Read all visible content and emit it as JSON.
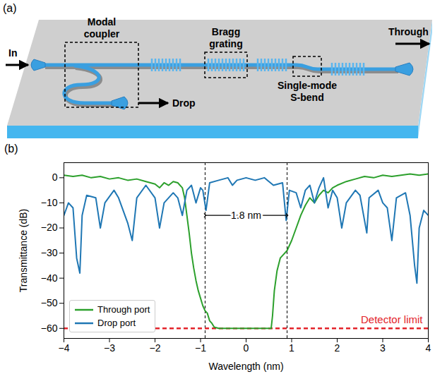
{
  "diagram": {
    "panel_label": "(a)",
    "labels": {
      "input": "In",
      "drop": "Drop",
      "through": "Through",
      "modal_coupler": "Modal coupler",
      "bragg_grating": "Bragg grating",
      "s_bend": "Single-mode S-bend"
    }
  },
  "chart_data": {
    "type": "line",
    "panel_label": "(b)",
    "x_label": "Wavelength (nm)",
    "y_label": "Transmittance (dB)",
    "xlim": [
      -4,
      4
    ],
    "ylim": [
      -64,
      6
    ],
    "xticks": [
      -4,
      -3,
      -2,
      -1,
      0,
      1,
      2,
      3,
      4
    ],
    "yticks": [
      -60,
      -50,
      -40,
      -30,
      -20,
      -10,
      0
    ],
    "grid": false,
    "legend": "lower left",
    "series": [
      {
        "name": "Through port",
        "color": "#2ca02c",
        "x": [
          -4,
          -3.8,
          -3.6,
          -3.4,
          -3.2,
          -3.0,
          -2.8,
          -2.6,
          -2.4,
          -2.2,
          -2.0,
          -1.9,
          -1.8,
          -1.7,
          -1.6,
          -1.5,
          -1.4,
          -1.35,
          -1.3,
          -1.25,
          -1.2,
          -1.15,
          -1.1,
          -1.05,
          -1.0,
          -0.95,
          -0.9,
          -0.85,
          -0.8,
          -0.75,
          -0.7,
          -0.6,
          0.55,
          0.58,
          0.62,
          0.68,
          0.75,
          0.8,
          0.9,
          1.0,
          1.1,
          1.2,
          1.3,
          1.4,
          1.5,
          1.6,
          1.7,
          1.8,
          1.9,
          2.0,
          2.2,
          2.4,
          2.6,
          2.8,
          3.0,
          3.2,
          3.4,
          3.6,
          3.8,
          4.0
        ],
        "values": [
          1,
          0.5,
          1,
          0,
          0.5,
          -0.5,
          0,
          -1,
          -0.5,
          -1.5,
          -2.5,
          -4,
          -2,
          -3,
          -1.5,
          -2,
          -4,
          -8,
          -15,
          -22,
          -30,
          -36,
          -41,
          -45,
          -48,
          -51,
          -53,
          -54,
          -57,
          -58,
          -59.5,
          -60,
          -60,
          -55,
          -45,
          -37,
          -32,
          -31,
          -29,
          -25,
          -20,
          -15,
          -11,
          -8,
          -10,
          -7,
          -5,
          -6,
          -4,
          -3,
          -1.5,
          -0.5,
          0.5,
          0,
          1,
          0.5,
          1,
          1.5,
          1,
          1.5
        ]
      },
      {
        "name": "Drop port",
        "color": "#1f77b4",
        "x": [
          -4,
          -3.9,
          -3.8,
          -3.72,
          -3.65,
          -3.6,
          -3.5,
          -3.3,
          -3.2,
          -3.1,
          -2.9,
          -2.8,
          -2.6,
          -2.5,
          -2.4,
          -2.2,
          -2.0,
          -1.9,
          -1.8,
          -1.6,
          -1.5,
          -1.4,
          -1.3,
          -1.2,
          -1.1,
          -1.0,
          -0.95,
          -0.88,
          -0.8,
          -0.6,
          -0.4,
          -0.3,
          -0.2,
          0,
          0.2,
          0.4,
          0.6,
          0.8,
          0.88,
          0.95,
          1.1,
          1.2,
          1.3,
          1.4,
          1.5,
          1.6,
          1.7,
          1.8,
          1.9,
          2.0,
          2.1,
          2.2,
          2.4,
          2.5,
          2.65,
          2.7,
          2.9,
          3.0,
          3.1,
          3.2,
          3.3,
          3.5,
          3.6,
          3.7,
          3.75,
          3.8,
          3.9,
          4.0
        ],
        "values": [
          -15,
          -10,
          -12,
          -32,
          -38,
          -15,
          -7,
          -8,
          -20,
          -10,
          -5,
          -8,
          -18,
          -25,
          -8,
          -3,
          -8,
          -20,
          -10,
          -6,
          -8,
          -15,
          -5,
          -3,
          -10,
          -4,
          -5,
          -13,
          -2,
          -1,
          0,
          -3,
          -1,
          0,
          -1,
          0,
          -3,
          -2,
          -17,
          -5,
          -6,
          -12,
          -5,
          -3,
          -10,
          -4,
          0,
          -12,
          -5,
          -8,
          -20,
          -10,
          -5,
          -7,
          -22,
          -8,
          -5,
          -10,
          -12,
          -25,
          -8,
          -6,
          -15,
          -35,
          -42,
          -20,
          -13,
          -15
        ]
      }
    ],
    "annotations": [
      {
        "type": "vline",
        "x": -0.9,
        "line_style": "dashed"
      },
      {
        "type": "vline",
        "x": 0.9,
        "line_style": "dashed"
      },
      {
        "type": "span_arrow",
        "x1": -0.9,
        "x2": 0.9,
        "y": -15,
        "text": "1.8 nm"
      },
      {
        "type": "hline",
        "y": -60,
        "text": "Detector limit",
        "color": "#e3242b",
        "line_style": "dashed"
      }
    ]
  }
}
